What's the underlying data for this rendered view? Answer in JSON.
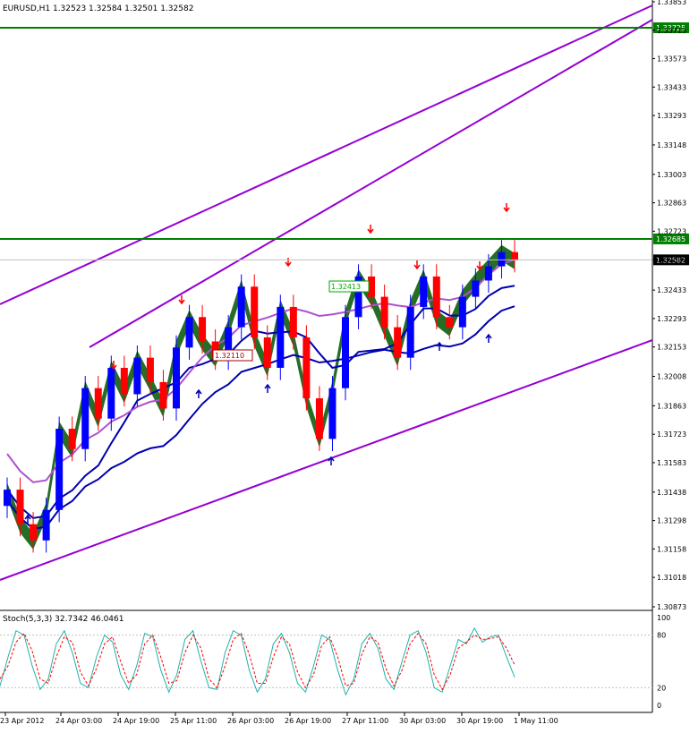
{
  "window": {
    "symbol_info": "EURUSD,H1  1.32523 1.32584 1.32501 1.32582",
    "stoch_label": "Stoch(5,3,3) 32.7342 46.0461"
  },
  "colors": {
    "background": "#ffffff",
    "grid": "#c0c0c0",
    "bull_candle": "#0000ff",
    "bear_candle": "#ff0000",
    "cloud_bull": "#005500",
    "cloud_bear": "#4a0000",
    "level_line": "#008000",
    "trend_line": "#9400d3",
    "ma_line": "#0000b0",
    "violet_ma": "#b050d0",
    "stoch_main": "#20b2aa",
    "stoch_signal": "#ff0000"
  },
  "chart_data": [
    {
      "type": "candlestick",
      "title": "EURUSD,H1",
      "ohlc_latest": {
        "open": 1.32523,
        "high": 1.32584,
        "low": 1.32501,
        "close": 1.32582
      },
      "y_ticks": [
        "1.33853",
        "1.33713",
        "1.33573",
        "1.33433",
        "1.33293",
        "1.33148",
        "1.33003",
        "1.32863",
        "1.32723",
        "1.32583",
        "1.32433",
        "1.32293",
        "1.32153",
        "1.32008",
        "1.31863",
        "1.31723",
        "1.31583",
        "1.31438",
        "1.31298",
        "1.31158",
        "1.31018",
        "1.30873"
      ],
      "ylim": [
        1.30873,
        1.33853
      ],
      "x_ticks": [
        "23 Apr 2012",
        "24 Apr 03:00",
        "24 Apr 19:00",
        "25 Apr 11:00",
        "26 Apr 03:00",
        "26 Apr 19:00",
        "27 Apr 11:00",
        "30 Apr 03:00",
        "30 Apr 19:00",
        "1 May 11:00"
      ],
      "price_labels": [
        {
          "value": "1.33725",
          "color": "#008000"
        },
        {
          "value": "1.32685",
          "color": "#008000"
        },
        {
          "value": "1.32582",
          "color": "#000000"
        }
      ],
      "horizontal_levels": [
        1.33725,
        1.32685
      ],
      "current_price": 1.32582,
      "annotations": [
        "1.32413",
        "1.32110"
      ],
      "series": [
        {
          "values": [
            1.3145,
            1.3128,
            1.312,
            1.3135,
            1.3175,
            1.3165,
            1.3195,
            1.318,
            1.3205,
            1.3192,
            1.321,
            1.3198,
            1.3185,
            1.3215,
            1.323,
            1.3218,
            1.321,
            1.3225,
            1.3245,
            1.322,
            1.3205,
            1.3235,
            1.322,
            1.319,
            1.317,
            1.3195,
            1.323,
            1.325,
            1.324,
            1.3225,
            1.321,
            1.3235,
            1.325,
            1.323,
            1.3225,
            1.324,
            1.3248,
            1.3255,
            1.3262,
            1.3258
          ]
        }
      ]
    },
    {
      "type": "line",
      "title": "Stoch(5,3,3) 32.7342 46.0461",
      "y_ticks": [
        "100",
        "80",
        "20",
        "0"
      ],
      "ylim": [
        0,
        100
      ],
      "series": [
        {
          "values": [
            22,
            55,
            85,
            80,
            45,
            18,
            30,
            70,
            85,
            60,
            25,
            20,
            55,
            80,
            72,
            35,
            18,
            45,
            82,
            78,
            40,
            15,
            35,
            75,
            85,
            50,
            20,
            18,
            60,
            85,
            80,
            40,
            15,
            30,
            70,
            82,
            60,
            25,
            15,
            45,
            80,
            75,
            40,
            12,
            30,
            70,
            82,
            65,
            30,
            18,
            50,
            80,
            85,
            60,
            20,
            15,
            45,
            75,
            70,
            88,
            72,
            78,
            80,
            55,
            32
          ]
        },
        {
          "values": [
            30,
            45,
            72,
            82,
            62,
            30,
            25,
            55,
            78,
            72,
            38,
            22,
            42,
            70,
            78,
            50,
            25,
            35,
            70,
            80,
            55,
            25,
            28,
            60,
            80,
            65,
            30,
            20,
            45,
            75,
            82,
            58,
            25,
            25,
            55,
            78,
            70,
            38,
            20,
            35,
            68,
            78,
            55,
            22,
            25,
            58,
            78,
            72,
            42,
            22,
            40,
            70,
            82,
            70,
            35,
            18,
            35,
            65,
            72,
            80,
            75,
            76,
            78,
            65,
            46
          ]
        }
      ]
    }
  ]
}
